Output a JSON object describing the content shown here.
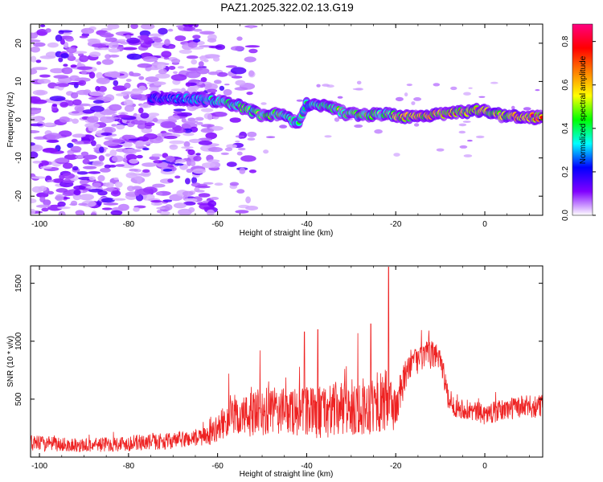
{
  "title": "PAZ1.2025.322.02.13.G19",
  "chart_data": [
    {
      "type": "heatmap",
      "xlabel": "Height of straight line (km)",
      "ylabel": "Frequency (Hz)",
      "xlim": [
        -102,
        13
      ],
      "ylim": [
        -25,
        25
      ],
      "xticks": [
        -100,
        -80,
        -60,
        -40,
        -20,
        0
      ],
      "xtick_labels": [
        "-100",
        "-80",
        "-60",
        "-40",
        "-20",
        "0"
      ],
      "yticks": [
        -20,
        -10,
        0,
        10,
        20
      ],
      "ytick_labels": [
        "-20",
        "-10",
        "0",
        "10",
        "20"
      ],
      "grid": false,
      "colorbar": {
        "label": "Normalized spectral amplitude",
        "range": [
          0,
          0.88
        ],
        "ticks": [
          0,
          0.2,
          0.4,
          0.6,
          0.8
        ],
        "tick_labels": [
          "0.0",
          "0.2",
          "0.4",
          "0.6",
          "0.8"
        ],
        "colormap": [
          "#ffffff",
          "#8000ff",
          "#0000ff",
          "#00ffff",
          "#00ff00",
          "#ffff00",
          "#ff8000",
          "#ff0000",
          "#ff0080"
        ]
      },
      "ridge": [
        {
          "x": -75,
          "f": 5.5,
          "a": 0.3
        },
        {
          "x": -68,
          "f": 5.5,
          "a": 0.35
        },
        {
          "x": -62,
          "f": 5.2,
          "a": 0.45
        },
        {
          "x": -58,
          "f": 4.5,
          "a": 0.5
        },
        {
          "x": -55,
          "f": 3.5,
          "a": 0.55
        },
        {
          "x": -50,
          "f": 1.0,
          "a": 0.55
        },
        {
          "x": -46,
          "f": 1.5,
          "a": 0.6
        },
        {
          "x": -42,
          "f": -1.0,
          "a": 0.45
        },
        {
          "x": -40,
          "f": 4.0,
          "a": 0.45
        },
        {
          "x": -35,
          "f": 3.5,
          "a": 0.55
        },
        {
          "x": -31,
          "f": 1.5,
          "a": 0.6
        },
        {
          "x": -27,
          "f": 1.2,
          "a": 0.6
        },
        {
          "x": -23,
          "f": 1.5,
          "a": 0.55
        },
        {
          "x": -18,
          "f": 0.8,
          "a": 0.75
        },
        {
          "x": -12,
          "f": 1.2,
          "a": 0.8
        },
        {
          "x": -6,
          "f": 1.8,
          "a": 0.75
        },
        {
          "x": -1,
          "f": 2.5,
          "a": 0.7
        },
        {
          "x": 4,
          "f": 1.0,
          "a": 0.75
        },
        {
          "x": 8,
          "f": 0.6,
          "a": 0.85
        },
        {
          "x": 13,
          "f": 0.6,
          "a": 0.8
        }
      ]
    },
    {
      "type": "line",
      "xlabel": "Height of straight line (km)",
      "ylabel": "SNR (10 * v/v)",
      "xlim": [
        -102,
        13
      ],
      "ylim": [
        0,
        1650
      ],
      "xticks": [
        -100,
        -80,
        -60,
        -40,
        -20,
        0
      ],
      "xtick_labels": [
        "-100",
        "-80",
        "-60",
        "-40",
        "-20",
        "0"
      ],
      "yticks": [
        500,
        1000,
        1500
      ],
      "ytick_labels": [
        "500",
        "1000",
        "1500"
      ],
      "grid": false,
      "series": [
        {
          "color": "#ee2222",
          "envelope": [
            {
              "x": -102,
              "base": 120,
              "amp": 70
            },
            {
              "x": -90,
              "base": 100,
              "amp": 60
            },
            {
              "x": -80,
              "base": 120,
              "amp": 70
            },
            {
              "x": -70,
              "base": 140,
              "amp": 70
            },
            {
              "x": -62,
              "base": 180,
              "amp": 80
            },
            {
              "x": -58,
              "base": 320,
              "amp": 150
            },
            {
              "x": -50,
              "base": 380,
              "amp": 220
            },
            {
              "x": -45,
              "base": 400,
              "amp": 200
            },
            {
              "x": -40,
              "base": 380,
              "amp": 220
            },
            {
              "x": -35,
              "base": 400,
              "amp": 240
            },
            {
              "x": -30,
              "base": 420,
              "amp": 250
            },
            {
              "x": -25,
              "base": 450,
              "amp": 250
            },
            {
              "x": -22,
              "base": 480,
              "amp": 280
            },
            {
              "x": -20,
              "base": 420,
              "amp": 200
            },
            {
              "x": -17,
              "base": 800,
              "amp": 120
            },
            {
              "x": -13,
              "base": 880,
              "amp": 120
            },
            {
              "x": -10,
              "base": 880,
              "amp": 120
            },
            {
              "x": -8,
              "base": 450,
              "amp": 90
            },
            {
              "x": 0,
              "base": 370,
              "amp": 90
            },
            {
              "x": 7,
              "base": 430,
              "amp": 100
            },
            {
              "x": 13,
              "base": 440,
              "amp": 100
            }
          ],
          "peaks": [
            {
              "x": -21.6,
              "y": 1640
            },
            {
              "x": -25.6,
              "y": 1150
            },
            {
              "x": -28.5,
              "y": 1070
            },
            {
              "x": -37.5,
              "y": 1100
            },
            {
              "x": -40.5,
              "y": 1080
            },
            {
              "x": -50.5,
              "y": 920
            },
            {
              "x": -57.5,
              "y": 720
            }
          ]
        }
      ]
    }
  ]
}
